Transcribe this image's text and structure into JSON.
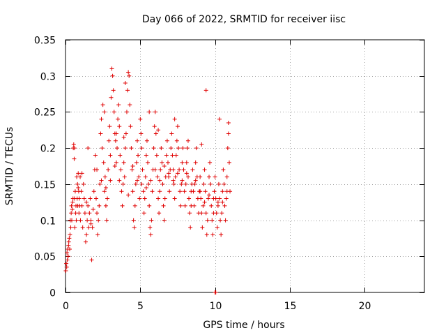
{
  "chart_data": {
    "type": "scatter",
    "title": "Day 066 of 2022, SRMTID for receiver iisc",
    "xlabel": "GPS time / hours",
    "ylabel": "SRMTID / TECUs",
    "xlim": [
      0,
      24
    ],
    "ylim": [
      0,
      0.35
    ],
    "xticks": [
      0,
      5,
      10,
      15,
      20
    ],
    "xtick_labels": [
      "0",
      "5",
      "10",
      "15",
      "20"
    ],
    "yticks": [
      0,
      0.05,
      0.1,
      0.15,
      0.2,
      0.25,
      0.3,
      0.35
    ],
    "ytick_labels": [
      "0",
      "0.05",
      "0.1",
      "0.15",
      "0.2",
      "0.25",
      "0.3",
      "0.35"
    ],
    "grid": true,
    "marker": "plus",
    "color": "#e00000",
    "x_unit": "hours",
    "y_unit": "TECUs",
    "series": [
      {
        "points": [
          [
            0.02,
            0.03
          ],
          [
            0.05,
            0.04
          ],
          [
            0.08,
            0.035
          ],
          [
            0.1,
            0.055
          ],
          [
            0.12,
            0.045
          ],
          [
            0.15,
            0.06
          ],
          [
            0.18,
            0.05
          ],
          [
            0.2,
            0.065
          ],
          [
            0.22,
            0.07
          ],
          [
            0.25,
            0.075
          ],
          [
            0.28,
            0.06
          ],
          [
            0.3,
            0.08
          ],
          [
            0.32,
            0.1
          ],
          [
            0.35,
            0.09
          ],
          [
            0.38,
            0.11
          ],
          [
            0.4,
            0.12
          ],
          [
            0.42,
            0.1
          ],
          [
            0.45,
            0.115
          ],
          [
            0.48,
            0.125
          ],
          [
            0.5,
            0.13
          ],
          [
            0.52,
            0.2
          ],
          [
            0.55,
            0.205
          ],
          [
            0.58,
            0.185
          ],
          [
            0.6,
            0.13
          ],
          [
            0.62,
            0.09
          ],
          [
            0.65,
            0.14
          ],
          [
            0.68,
            0.11
          ],
          [
            0.7,
            0.12
          ],
          [
            0.72,
            0.1
          ],
          [
            0.75,
            0.16
          ],
          [
            0.78,
            0.13
          ],
          [
            0.8,
            0.15
          ],
          [
            0.82,
            0.12
          ],
          [
            0.85,
            0.165
          ],
          [
            0.88,
            0.14
          ],
          [
            0.9,
            0.11
          ],
          [
            0.92,
            0.13
          ],
          [
            0.95,
            0.12
          ],
          [
            0.98,
            0.16
          ],
          [
            1.0,
            0.1
          ],
          [
            1.05,
            0.14
          ],
          [
            1.1,
            0.12
          ],
          [
            1.15,
            0.09
          ],
          [
            1.2,
            0.15
          ],
          [
            1.25,
            0.13
          ],
          [
            1.3,
            0.11
          ],
          [
            1.35,
            0.07
          ],
          [
            1.4,
            0.08
          ],
          [
            1.45,
            0.1
          ],
          [
            1.5,
            0.12
          ],
          [
            1.55,
            0.09
          ],
          [
            1.6,
            0.11
          ],
          [
            1.65,
            0.13
          ],
          [
            1.7,
            0.1
          ],
          [
            1.75,
            0.045
          ],
          [
            1.8,
            0.09
          ],
          [
            1.85,
            0.115
          ],
          [
            1.9,
            0.14
          ],
          [
            1.95,
            0.17
          ],
          [
            2.0,
            0.19
          ],
          [
            2.05,
            0.13
          ],
          [
            2.1,
            0.11
          ],
          [
            2.15,
            0.08
          ],
          [
            2.2,
            0.1
          ],
          [
            2.25,
            0.12
          ],
          [
            2.3,
            0.15
          ],
          [
            2.35,
            0.22
          ],
          [
            2.4,
            0.24
          ],
          [
            2.45,
            0.2
          ],
          [
            2.5,
            0.26
          ],
          [
            2.55,
            0.18
          ],
          [
            2.6,
            0.14
          ],
          [
            2.65,
            0.16
          ],
          [
            2.7,
            0.12
          ],
          [
            2.75,
            0.1
          ],
          [
            2.8,
            0.13
          ],
          [
            2.85,
            0.17
          ],
          [
            2.9,
            0.21
          ],
          [
            2.95,
            0.23
          ],
          [
            3.0,
            0.19
          ],
          [
            3.05,
            0.27
          ],
          [
            3.1,
            0.31
          ],
          [
            3.15,
            0.3
          ],
          [
            3.2,
            0.28
          ],
          [
            3.25,
            0.25
          ],
          [
            3.3,
            0.22
          ],
          [
            3.35,
            0.21
          ],
          [
            3.4,
            0.18
          ],
          [
            3.45,
            0.2
          ],
          [
            3.5,
            0.24
          ],
          [
            3.55,
            0.26
          ],
          [
            3.6,
            0.23
          ],
          [
            3.65,
            0.19
          ],
          [
            3.7,
            0.17
          ],
          [
            3.75,
            0.14
          ],
          [
            3.8,
            0.12
          ],
          [
            3.85,
            0.15
          ],
          [
            3.9,
            0.18
          ],
          [
            3.95,
            0.16
          ],
          [
            4.0,
            0.2
          ],
          [
            4.05,
            0.22
          ],
          [
            4.1,
            0.25
          ],
          [
            4.15,
            0.28
          ],
          [
            4.2,
            0.305
          ],
          [
            4.25,
            0.3
          ],
          [
            4.3,
            0.26
          ],
          [
            4.35,
            0.23
          ],
          [
            4.4,
            0.2
          ],
          [
            4.45,
            0.17
          ],
          [
            4.5,
            0.14
          ],
          [
            4.55,
            0.1
          ],
          [
            4.6,
            0.09
          ],
          [
            4.65,
            0.12
          ],
          [
            4.7,
            0.15
          ],
          [
            4.75,
            0.18
          ],
          [
            4.8,
            0.21
          ],
          [
            4.85,
            0.19
          ],
          [
            4.9,
            0.16
          ],
          [
            4.95,
            0.13
          ],
          [
            5.0,
            0.24
          ],
          [
            5.05,
            0.22
          ],
          [
            5.1,
            0.2
          ],
          [
            5.15,
            0.17
          ],
          [
            5.2,
            0.14
          ],
          [
            5.25,
            0.11
          ],
          [
            5.3,
            0.13
          ],
          [
            5.35,
            0.16
          ],
          [
            5.4,
            0.19
          ],
          [
            5.45,
            0.21
          ],
          [
            5.5,
            0.18
          ],
          [
            5.55,
            0.15
          ],
          [
            5.6,
            0.12
          ],
          [
            5.65,
            0.09
          ],
          [
            5.7,
            0.08
          ],
          [
            5.75,
            0.1
          ],
          [
            5.8,
            0.14
          ],
          [
            5.85,
            0.17
          ],
          [
            5.9,
            0.2
          ],
          [
            5.95,
            0.23
          ],
          [
            6.0,
            0.25
          ],
          [
            6.05,
            0.22
          ],
          [
            6.1,
            0.19
          ],
          [
            6.15,
            0.16
          ],
          [
            6.2,
            0.13
          ],
          [
            6.25,
            0.11
          ],
          [
            6.3,
            0.14
          ],
          [
            6.35,
            0.17
          ],
          [
            6.4,
            0.2
          ],
          [
            6.45,
            0.18
          ],
          [
            6.5,
            0.15
          ],
          [
            6.55,
            0.12
          ],
          [
            6.6,
            0.1
          ],
          [
            6.65,
            0.13
          ],
          [
            6.7,
            0.16
          ],
          [
            6.75,
            0.19
          ],
          [
            6.8,
            0.21
          ],
          [
            6.85,
            0.18
          ],
          [
            6.9,
            0.16
          ],
          [
            6.95,
            0.14
          ],
          [
            7.0,
            0.17
          ],
          [
            7.05,
            0.2
          ],
          [
            7.1,
            0.22
          ],
          [
            7.15,
            0.19
          ],
          [
            7.2,
            0.17
          ],
          [
            7.25,
            0.15
          ],
          [
            7.3,
            0.13
          ],
          [
            7.35,
            0.16
          ],
          [
            7.4,
            0.19
          ],
          [
            7.45,
            0.21
          ],
          [
            7.5,
            0.23
          ],
          [
            7.55,
            0.2
          ],
          [
            7.6,
            0.17
          ],
          [
            7.65,
            0.14
          ],
          [
            7.7,
            0.12
          ],
          [
            7.75,
            0.15
          ],
          [
            7.8,
            0.18
          ],
          [
            7.85,
            0.2
          ],
          [
            7.9,
            0.17
          ],
          [
            7.95,
            0.14
          ],
          [
            8.0,
            0.12
          ],
          [
            8.05,
            0.15
          ],
          [
            8.1,
            0.18
          ],
          [
            8.15,
            0.2
          ],
          [
            8.2,
            0.16
          ],
          [
            8.25,
            0.13
          ],
          [
            8.3,
            0.11
          ],
          [
            8.35,
            0.09
          ],
          [
            8.4,
            0.12
          ],
          [
            8.45,
            0.15
          ],
          [
            8.5,
            0.17
          ],
          [
            8.55,
            0.14
          ],
          [
            8.6,
            0.12
          ],
          [
            8.65,
            0.15
          ],
          [
            8.7,
            0.18
          ],
          [
            8.75,
            0.2
          ],
          [
            8.8,
            0.16
          ],
          [
            8.85,
            0.13
          ],
          [
            8.9,
            0.11
          ],
          [
            8.95,
            0.14
          ],
          [
            9.0,
            0.16
          ],
          [
            9.05,
            0.13
          ],
          [
            9.1,
            0.11
          ],
          [
            9.15,
            0.09
          ],
          [
            9.2,
            0.12
          ],
          [
            9.25,
            0.15
          ],
          [
            9.3,
            0.17
          ],
          [
            9.35,
            0.14
          ],
          [
            9.4,
            0.11
          ],
          [
            9.45,
            0.08
          ],
          [
            9.5,
            0.1
          ],
          [
            9.55,
            0.13
          ],
          [
            9.6,
            0.16
          ],
          [
            9.65,
            0.18
          ],
          [
            9.7,
            0.15
          ],
          [
            9.75,
            0.12
          ],
          [
            9.8,
            0.1
          ],
          [
            9.85,
            0.08
          ],
          [
            9.9,
            0.11
          ],
          [
            9.95,
            0.14
          ],
          [
            10.0,
            0.16
          ],
          [
            10.05,
            0.13
          ],
          [
            10.1,
            0.11
          ],
          [
            10.15,
            0.09
          ],
          [
            10.2,
            0.12
          ],
          [
            10.25,
            0.15
          ],
          [
            10.3,
            0.13
          ],
          [
            10.35,
            0.1
          ],
          [
            10.4,
            0.08
          ],
          [
            10.45,
            0.11
          ],
          [
            10.5,
            0.14
          ],
          [
            10.55,
            0.17
          ],
          [
            10.6,
            0.15
          ],
          [
            10.65,
            0.12
          ],
          [
            10.7,
            0.1
          ],
          [
            10.75,
            0.13
          ],
          [
            10.8,
            0.16
          ],
          [
            10.85,
            0.2
          ],
          [
            10.9,
            0.22
          ],
          [
            10.95,
            0.18
          ],
          [
            11.0,
            0.14
          ],
          [
            10.0,
            0.0
          ],
          [
            10.05,
            0.0
          ],
          [
            0.6,
            0.2
          ],
          [
            0.85,
            0.145
          ],
          [
            1.1,
            0.165
          ],
          [
            1.4,
            0.125
          ],
          [
            1.7,
            0.095
          ],
          [
            2.1,
            0.17
          ],
          [
            2.4,
            0.155
          ],
          [
            2.7,
            0.145
          ],
          [
            3.0,
            0.155
          ],
          [
            3.3,
            0.175
          ],
          [
            3.6,
            0.155
          ],
          [
            3.9,
            0.215
          ],
          [
            4.2,
            0.135
          ],
          [
            4.5,
            0.175
          ],
          [
            4.8,
            0.155
          ],
          [
            5.1,
            0.15
          ],
          [
            5.4,
            0.145
          ],
          [
            5.7,
            0.155
          ],
          [
            6.0,
            0.17
          ],
          [
            6.3,
            0.155
          ],
          [
            6.6,
            0.175
          ],
          [
            6.9,
            0.165
          ],
          [
            7.2,
            0.155
          ],
          [
            7.5,
            0.165
          ],
          [
            7.8,
            0.155
          ],
          [
            8.1,
            0.165
          ],
          [
            8.4,
            0.14
          ],
          [
            8.7,
            0.155
          ],
          [
            9.0,
            0.14
          ],
          [
            9.3,
            0.125
          ],
          [
            9.6,
            0.135
          ],
          [
            9.9,
            0.13
          ],
          [
            10.2,
            0.125
          ],
          [
            10.5,
            0.125
          ],
          [
            10.8,
            0.14
          ],
          [
            1.5,
            0.2
          ],
          [
            2.6,
            0.25
          ],
          [
            3.4,
            0.22
          ],
          [
            4.0,
            0.29
          ],
          [
            5.6,
            0.25
          ],
          [
            6.2,
            0.225
          ],
          [
            7.3,
            0.24
          ],
          [
            8.2,
            0.21
          ],
          [
            9.1,
            0.205
          ],
          [
            9.4,
            0.28
          ],
          [
            10.3,
            0.24
          ],
          [
            10.9,
            0.235
          ]
        ]
      }
    ]
  }
}
